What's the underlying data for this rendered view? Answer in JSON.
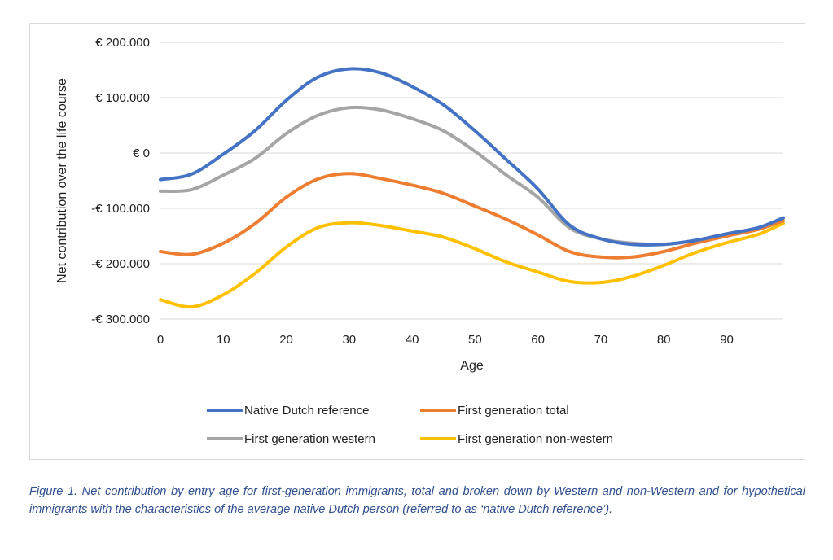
{
  "chart_data": {
    "type": "line",
    "title": "",
    "xlabel": "Age",
    "ylabel": "Net contribution over the life course",
    "xlim": [
      0,
      99
    ],
    "ylim": [
      -300000,
      200000
    ],
    "x_ticks": [
      0,
      10,
      20,
      30,
      40,
      50,
      60,
      70,
      80,
      90
    ],
    "y_ticks": [
      200000,
      100000,
      0,
      -100000,
      -200000,
      -300000
    ],
    "y_tick_labels": [
      "€ 200.000",
      "€ 100.000",
      "€ 0",
      "-€ 100.000",
      "-€ 200.000",
      "-€ 300.000"
    ],
    "grid": "horizontal",
    "legend_position": "bottom",
    "x": [
      0,
      5,
      10,
      15,
      20,
      25,
      30,
      35,
      40,
      45,
      50,
      55,
      60,
      65,
      70,
      75,
      80,
      85,
      90,
      95,
      99
    ],
    "series": [
      {
        "name": "Native Dutch reference",
        "color": "#4472c4",
        "values": [
          -48000,
          -38000,
          -2000,
          40000,
          95000,
          137000,
          152000,
          145000,
          120000,
          87000,
          40000,
          -12000,
          -65000,
          -130000,
          -155000,
          -165000,
          -165000,
          -158000,
          -146000,
          -135000,
          -117000
        ]
      },
      {
        "name": "First generation total",
        "color": "#ed7d31",
        "values": [
          -178000,
          -183000,
          -163000,
          -128000,
          -80000,
          -47000,
          -37000,
          -46000,
          -58000,
          -73000,
          -96000,
          -120000,
          -148000,
          -178000,
          -188000,
          -188000,
          -178000,
          -163000,
          -150000,
          -138000,
          -122000
        ]
      },
      {
        "name": "First generation western",
        "color": "#a5a5a5",
        "values": [
          -69000,
          -66000,
          -40000,
          -10000,
          35000,
          68000,
          82000,
          78000,
          62000,
          40000,
          3000,
          -40000,
          -80000,
          -135000,
          -155000,
          -163000,
          -165000,
          -158000,
          -146000,
          -135000,
          -117000
        ]
      },
      {
        "name": "First generation non-western",
        "color": "#ffc000",
        "values": [
          -265000,
          -278000,
          -256000,
          -218000,
          -170000,
          -135000,
          -126000,
          -131000,
          -141000,
          -152000,
          -173000,
          -197000,
          -215000,
          -232000,
          -234000,
          -223000,
          -203000,
          -180000,
          -162000,
          -147000,
          -127000
        ]
      }
    ]
  },
  "caption": "Figure 1. Net contribution by entry age for first-generation immigrants, total and broken down by Western and non-Western and for hypothetical immigrants with the characteristics of the average native Dutch person (referred to as ‘native Dutch reference’)."
}
